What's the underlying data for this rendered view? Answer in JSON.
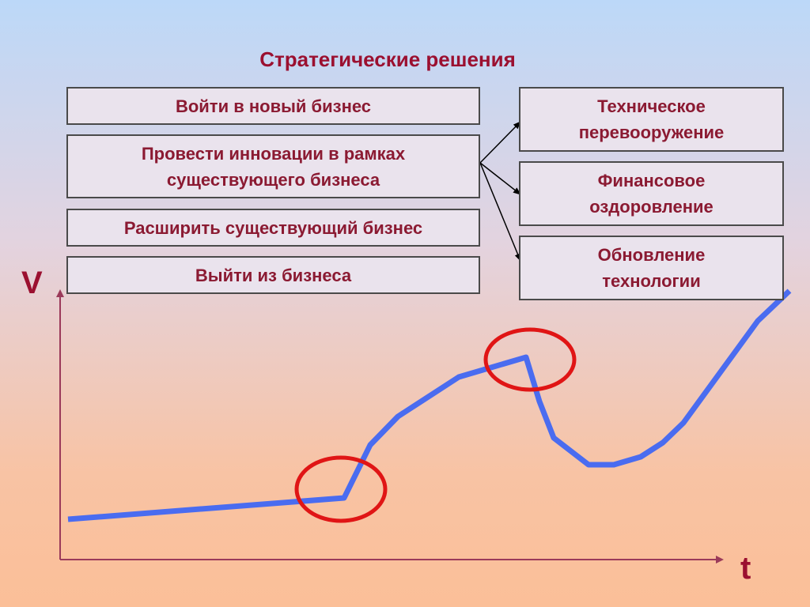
{
  "title": "Стратегические решения",
  "decisions": [
    {
      "label": "Войти в новый бизнес"
    },
    {
      "label": "Провести инновации в рамках\nсуществующего бизнеса"
    },
    {
      "label": "Расширить существующий бизнес"
    },
    {
      "label": "Выйти из бизнеса"
    }
  ],
  "innovation_types": [
    {
      "label": "Техническое\nперевооружение"
    },
    {
      "label": "Финансовое\nоздоровление"
    },
    {
      "label": "Обновление\nтехнологии"
    }
  ],
  "axes": {
    "y_label": "V",
    "x_label": "t"
  },
  "colors": {
    "title": "#9b1030",
    "curve": "#4a6cf0",
    "highlight": "#e01515",
    "axis": "#9b3a5a"
  }
}
